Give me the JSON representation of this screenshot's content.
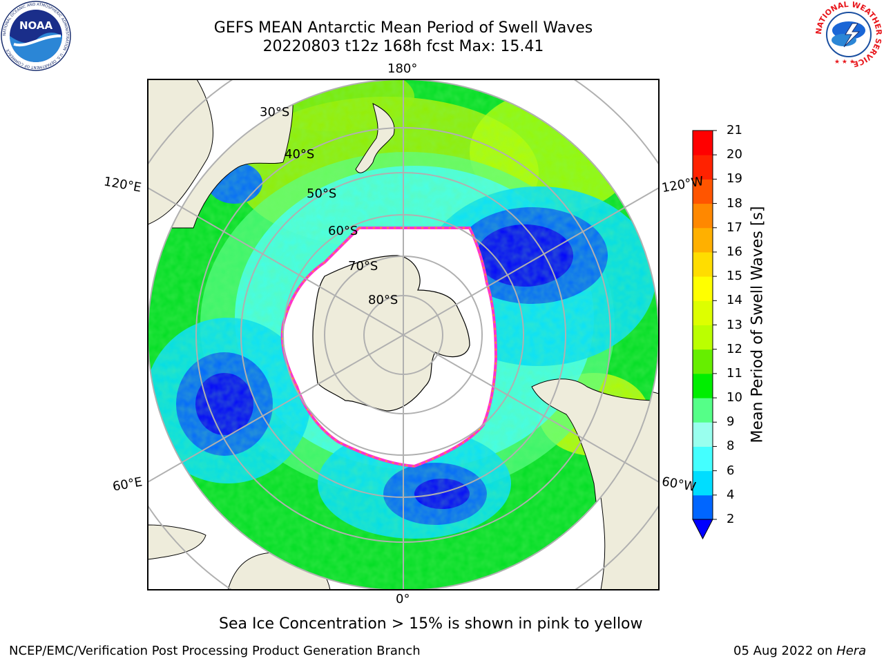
{
  "header": {
    "title": "GEFS MEAN Antarctic Mean Period of Swell Waves",
    "subtitle": "20220803 t12z 168h fcst   Max: 15.41"
  },
  "logos": {
    "noaa": {
      "text": "NOAA",
      "ring_text": "NATIONAL OCEANIC AND ATMOSPHERIC ADMINISTRATION · U.S. DEPARTMENT OF COMMERCE"
    },
    "nws": {
      "ring_text": "NATIONAL WEATHER SERVICE"
    }
  },
  "map": {
    "projection": "south-polar-stereographic",
    "longitude_labels": [
      "180°",
      "120°E",
      "120°W",
      "60°E",
      "60°W",
      "0°"
    ],
    "latitude_labels": [
      "30°S",
      "40°S",
      "50°S",
      "60°S",
      "70°S",
      "80°S"
    ],
    "land_color": "#eeecdb",
    "ice_edge_colors": [
      "#ff33cc",
      "#ffb300",
      "#ffee00"
    ]
  },
  "colorbar": {
    "label": "Mean Period of Swell Waves [s]",
    "ticks": [
      "2",
      "4",
      "6",
      "8",
      "9",
      "10",
      "11",
      "12",
      "13",
      "14",
      "15",
      "16",
      "17",
      "18",
      "19",
      "20",
      "21"
    ],
    "colors": [
      "#0000ff",
      "#0066ff",
      "#00ddff",
      "#44ffff",
      "#99ffee",
      "#55ff88",
      "#00ee00",
      "#66ee00",
      "#bbff00",
      "#ddff00",
      "#ffff00",
      "#ffdd00",
      "#ffb000",
      "#ff8800",
      "#ff5500",
      "#ff2200",
      "#ff0000"
    ],
    "extend": "min"
  },
  "annotation": "Sea Ice Concentration > 15% is shown in pink to yellow",
  "footer": {
    "left": "NCEP/EMC/Verification Post Processing Product Generation Branch",
    "right_date": "05 Aug 2022 on ",
    "right_host": "Hera"
  }
}
